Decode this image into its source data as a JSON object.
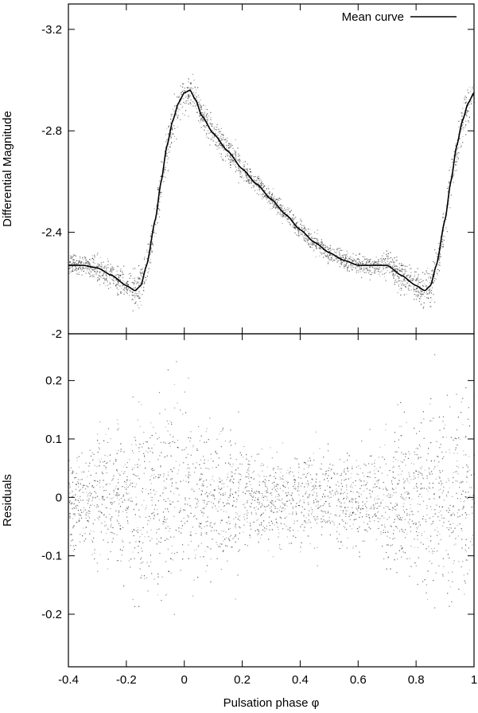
{
  "chart_data": [
    {
      "type": "scatter",
      "panel": "top",
      "title": "",
      "xlabel": "",
      "ylabel": "Differential Magnitude",
      "xlim": [
        -0.4,
        1.0
      ],
      "ylim": [
        -2.0,
        -3.3
      ],
      "y_inverted": true,
      "grid": false,
      "legend_position": "top-right",
      "xticks": [],
      "yticks": [
        {
          "value": -3.2,
          "label": "-3.2"
        },
        {
          "value": -2.8,
          "label": "-2.8"
        },
        {
          "value": -2.4,
          "label": "-2.4"
        },
        {
          "value": -2.0,
          "label": "-2"
        }
      ],
      "series": [
        {
          "name": "Mean curve",
          "kind": "line",
          "x": [
            -0.4,
            -0.35,
            -0.3,
            -0.25,
            -0.2,
            -0.17,
            -0.15,
            -0.13,
            -0.1,
            -0.08,
            -0.06,
            -0.04,
            -0.02,
            0.0,
            0.02,
            0.04,
            0.06,
            0.1,
            0.15,
            0.2,
            0.25,
            0.3,
            0.35,
            0.4,
            0.45,
            0.5,
            0.55,
            0.6,
            0.65,
            0.7,
            0.75,
            0.8,
            0.83,
            0.85,
            0.87,
            0.9,
            0.92,
            0.94,
            0.96,
            0.98,
            1.0
          ],
          "y": [
            -2.27,
            -2.27,
            -2.26,
            -2.23,
            -2.19,
            -2.17,
            -2.19,
            -2.27,
            -2.45,
            -2.6,
            -2.74,
            -2.84,
            -2.91,
            -2.95,
            -2.96,
            -2.92,
            -2.86,
            -2.79,
            -2.72,
            -2.65,
            -2.59,
            -2.53,
            -2.47,
            -2.41,
            -2.36,
            -2.32,
            -2.29,
            -2.27,
            -2.27,
            -2.27,
            -2.23,
            -2.19,
            -2.17,
            -2.19,
            -2.27,
            -2.45,
            -2.6,
            -2.74,
            -2.84,
            -2.91,
            -2.95
          ]
        }
      ]
    },
    {
      "type": "scatter",
      "panel": "bottom",
      "title": "",
      "xlabel": "Pulsation phase φ",
      "ylabel": "Residuals",
      "xlim": [
        -0.4,
        1.0
      ],
      "ylim": [
        -0.29,
        0.28
      ],
      "grid": false,
      "xticks": [
        {
          "value": -0.4,
          "label": "-0.4"
        },
        {
          "value": -0.2,
          "label": "-0.2"
        },
        {
          "value": 0.0,
          "label": "0"
        },
        {
          "value": 0.2,
          "label": "0.2"
        },
        {
          "value": 0.4,
          "label": "0.4"
        },
        {
          "value": 0.6,
          "label": "0.6"
        },
        {
          "value": 0.8,
          "label": "0.8"
        },
        {
          "value": 1.0,
          "label": "1"
        }
      ],
      "yticks": [
        {
          "value": 0.2,
          "label": "0.2"
        },
        {
          "value": 0.1,
          "label": "0.1"
        },
        {
          "value": 0.0,
          "label": "0"
        },
        {
          "value": -0.1,
          "label": "-0.1"
        },
        {
          "value": -0.2,
          "label": "-0.2"
        }
      ]
    }
  ]
}
